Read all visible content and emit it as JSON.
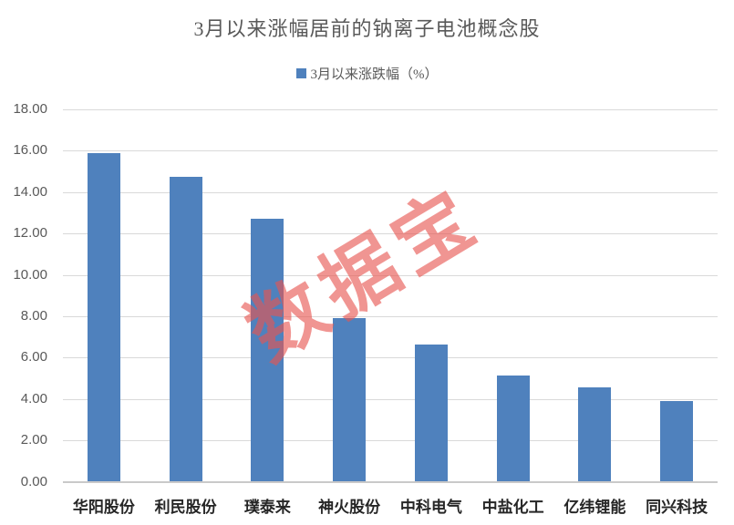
{
  "chart_data": {
    "type": "bar",
    "title": "3月以来涨幅居前的钠离子电池概念股",
    "legend": "3月以来涨跌幅（%）",
    "legend_position": "top",
    "categories": [
      "华阳股份",
      "利民股份",
      "璞泰来",
      "神火股份",
      "中科电气",
      "中盐化工",
      "亿纬锂能",
      "同兴科技"
    ],
    "values": [
      15.9,
      14.75,
      12.7,
      7.9,
      6.65,
      5.15,
      4.55,
      3.9
    ],
    "xlabel": "",
    "ylabel": "",
    "ylim": [
      0,
      18
    ],
    "ytick_step": 2,
    "ytick_labels": [
      "0.00",
      "2.00",
      "4.00",
      "6.00",
      "8.00",
      "10.00",
      "12.00",
      "14.00",
      "16.00",
      "18.00"
    ],
    "grid": true,
    "watermark": "数据宝"
  },
  "colors": {
    "bar": "#4F81BD",
    "grid": "#D9D9D9",
    "axis": "#C9C9C9",
    "title_text": "#595959",
    "tick_text": "#595959",
    "category_text": "#262626",
    "watermark": "#E85550"
  }
}
